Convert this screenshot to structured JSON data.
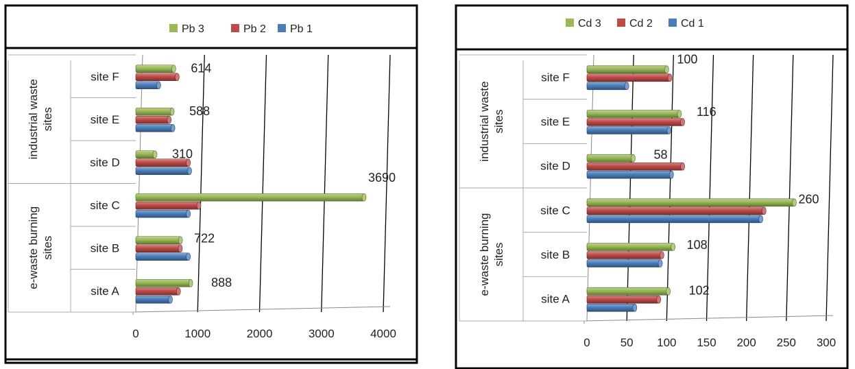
{
  "chart_data": [
    {
      "type": "bar",
      "orientation": "horizontal",
      "style": "3d-cylinder",
      "groups": [
        {
          "label": "e-waste burning sites",
          "categories": [
            "site A",
            "site B",
            "site C"
          ]
        },
        {
          "label": "industrial waste sites",
          "categories": [
            "site D",
            "site E",
            "site F"
          ]
        }
      ],
      "categories": [
        "site A",
        "site B",
        "site C",
        "site D",
        "site E",
        "site F"
      ],
      "series": [
        {
          "name": "Pb 1",
          "color": "#4a7ebb",
          "values": [
            560,
            850,
            850,
            870,
            600,
            370
          ]
        },
        {
          "name": "Pb 2",
          "color": "#be4b48",
          "values": [
            690,
            720,
            1020,
            850,
            540,
            670
          ]
        },
        {
          "name": "Pb 3",
          "color": "#98b954",
          "values": [
            888,
            722,
            3690,
            310,
            588,
            614
          ]
        }
      ],
      "data_labels": [
        "888",
        "722",
        "3690",
        "310",
        "588",
        "614"
      ],
      "xlim": [
        0,
        4000
      ],
      "x_ticks": [
        "0",
        "1000",
        "2000",
        "3000",
        "4000"
      ],
      "legend": {
        "position": "top",
        "order": [
          "Pb 3",
          "Pb 2",
          "Pb 1"
        ]
      },
      "grid": true
    },
    {
      "type": "bar",
      "orientation": "horizontal",
      "style": "3d-cylinder",
      "groups": [
        {
          "label": "e-waste burning sites",
          "categories": [
            "site A",
            "site B",
            "site C"
          ]
        },
        {
          "label": "industrial waste sites",
          "categories": [
            "site D",
            "site E",
            "site F"
          ]
        }
      ],
      "categories": [
        "site A",
        "site B",
        "site C",
        "site D",
        "site E",
        "site F"
      ],
      "series": [
        {
          "name": "Cd 1",
          "color": "#4a7ebb",
          "values": [
            60,
            92,
            218,
            106,
            103,
            50
          ]
        },
        {
          "name": "Cd 2",
          "color": "#be4b48",
          "values": [
            90,
            94,
            222,
            120,
            120,
            104
          ]
        },
        {
          "name": "Cd 3",
          "color": "#98b954",
          "values": [
            102,
            108,
            260,
            58,
            116,
            100
          ]
        }
      ],
      "data_labels": [
        "102",
        "108",
        "260",
        "58",
        "116",
        "100"
      ],
      "xlim": [
        0,
        300
      ],
      "x_ticks": [
        "0",
        "50",
        "100",
        "150",
        "200",
        "250",
        "300"
      ],
      "legend": {
        "position": "top",
        "order": [
          "Cd 3",
          "Cd 2",
          "Cd 1"
        ]
      },
      "grid": true
    }
  ]
}
